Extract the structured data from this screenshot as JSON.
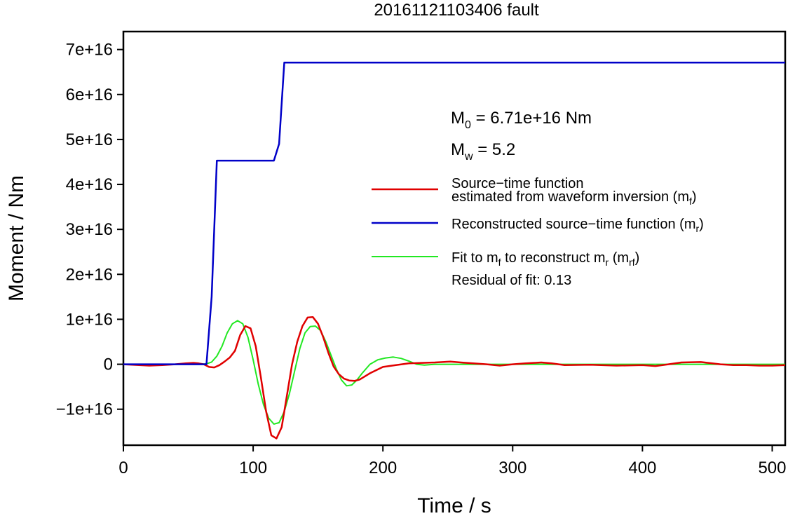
{
  "chart_data": {
    "type": "line",
    "title": "20161121103406 fault",
    "xlabel": "Time / s",
    "ylabel": "Moment / Nm",
    "xlim": [
      0,
      510
    ],
    "ylim": [
      -1.8e+16,
      7.4e+16
    ],
    "xticks": [
      0,
      100,
      200,
      300,
      400,
      500
    ],
    "xtick_labels": [
      "0",
      "100",
      "200",
      "300",
      "400",
      "500"
    ],
    "yticks": [
      -1e+16,
      0,
      1e+16,
      2e+16,
      3e+16,
      4e+16,
      5e+16,
      6e+16,
      7e+16
    ],
    "ytick_labels": [
      "−1e+16",
      "0",
      "1e+16",
      "2e+16",
      "3e+16",
      "4e+16",
      "5e+16",
      "6e+16",
      "7e+16"
    ],
    "grid": false,
    "legend_position": "right",
    "annotations": {
      "m0": {
        "main": "M",
        "sub": "0",
        "rest": " = 6.71e+16 Nm"
      },
      "mw": {
        "main": "M",
        "sub": "w",
        "rest": " = 5.2"
      },
      "residual": "Residual of fit: 0.13"
    },
    "series": [
      {
        "key": "red",
        "color": "#e00000",
        "legend": [
          {
            "line1": "Source−time function",
            "line2": "estimated from waveform inversion (m",
            "sub": "f",
            "close": ")"
          }
        ],
        "x": [
          0,
          20,
          30,
          40,
          48,
          54,
          58,
          62,
          66,
          70,
          74,
          78,
          82,
          86,
          90,
          94,
          98,
          102,
          106,
          110,
          114,
          118,
          122,
          126,
          130,
          134,
          138,
          142,
          146,
          150,
          154,
          158,
          162,
          166,
          170,
          174,
          178,
          182,
          190,
          200,
          210,
          220,
          240,
          252,
          260,
          280,
          290,
          300,
          310,
          322,
          330,
          340,
          360,
          380,
          400,
          410,
          420,
          430,
          445,
          460,
          470,
          480,
          490,
          500,
          510
        ],
        "y": [
          0,
          -300000000000000.0,
          -200000000000000.0,
          0,
          200000000000000.0,
          300000000000000.0,
          200000000000000.0,
          0,
          -600000000000000.0,
          -700000000000000.0,
          -200000000000000.0,
          600000000000000.0,
          1500000000000000.0,
          3000000000000000.0,
          6500000000000000.0,
          8500000000000000.0,
          8000000000000000.0,
          4000000000000000.0,
          -3000000000000000.0,
          -1.05e+16,
          -1.58e+16,
          -1.65e+16,
          -1.4e+16,
          -7000000000000000.0,
          0,
          5000000000000000.0,
          8500000000000000.0,
          1.04e+16,
          1.05e+16,
          9000000000000000.0,
          6000000000000000.0,
          2500000000000000.0,
          -500000000000000.0,
          -2200000000000000.0,
          -3200000000000000.0,
          -3600000000000000.0,
          -3700000000000000.0,
          -3400000000000000.0,
          -2000000000000000.0,
          -600000000000000.0,
          -200000000000000.0,
          200000000000000.0,
          400000000000000.0,
          600000000000000.0,
          400000000000000.0,
          0,
          -300000000000000.0,
          0,
          200000000000000.0,
          400000000000000.0,
          200000000000000.0,
          -200000000000000.0,
          -100000000000000.0,
          -300000000000000.0,
          -200000000000000.0,
          -400000000000000.0,
          0,
          400000000000000.0,
          500000000000000.0,
          0,
          -200000000000000.0,
          -200000000000000.0,
          -300000000000000.0,
          -300000000000000.0,
          -200000000000000.0
        ]
      },
      {
        "key": "blue",
        "color": "#0000c8",
        "legend": [
          {
            "line1": "Reconstructed source−time function (m",
            "sub": "r",
            "close": ")"
          }
        ],
        "x": [
          0,
          64,
          68,
          72,
          116,
          120,
          124,
          510
        ],
        "y": [
          0,
          0,
          1.5e+16,
          4.53e+16,
          4.53e+16,
          4.9e+16,
          6.71e+16,
          6.71e+16
        ]
      },
      {
        "key": "green",
        "color": "#22e822",
        "legend": [
          {
            "line1": "Fit to m",
            "sub1": "f",
            "mid": " to reconstruct m",
            "sub2": "r",
            "mid2": " (m",
            "sub3": "rf",
            "close": ")"
          }
        ],
        "x": [
          0,
          60,
          64,
          68,
          72,
          76,
          80,
          84,
          88,
          92,
          96,
          100,
          104,
          108,
          112,
          116,
          120,
          124,
          128,
          132,
          136,
          140,
          144,
          148,
          152,
          156,
          160,
          164,
          168,
          172,
          176,
          180,
          184,
          190,
          196,
          202,
          208,
          214,
          220,
          226,
          232,
          240,
          260,
          300,
          350,
          400,
          450,
          510
        ],
        "y": [
          0,
          0,
          100000000000000.0,
          500000000000000.0,
          1800000000000000.0,
          4000000000000000.0,
          7000000000000000.0,
          9000000000000000.0,
          9700000000000000.0,
          9000000000000000.0,
          6000000000000000.0,
          1000000000000000.0,
          -4500000000000000.0,
          -9000000000000000.0,
          -1.2e+16,
          -1.33e+16,
          -1.3e+16,
          -1.05e+16,
          -6500000000000000.0,
          -1500000000000000.0,
          3500000000000000.0,
          7000000000000000.0,
          8400000000000000.0,
          8500000000000000.0,
          7500000000000000.0,
          5000000000000000.0,
          2000000000000000.0,
          -1000000000000000.0,
          -3500000000000000.0,
          -4800000000000000.0,
          -4600000000000000.0,
          -3500000000000000.0,
          -2000000000000000.0,
          0,
          1000000000000000.0,
          1400000000000000.0,
          1600000000000000.0,
          1300000000000000.0,
          700000000000000.0,
          0,
          -200000000000000.0,
          0,
          0,
          0,
          0,
          0,
          0,
          0
        ]
      }
    ]
  }
}
